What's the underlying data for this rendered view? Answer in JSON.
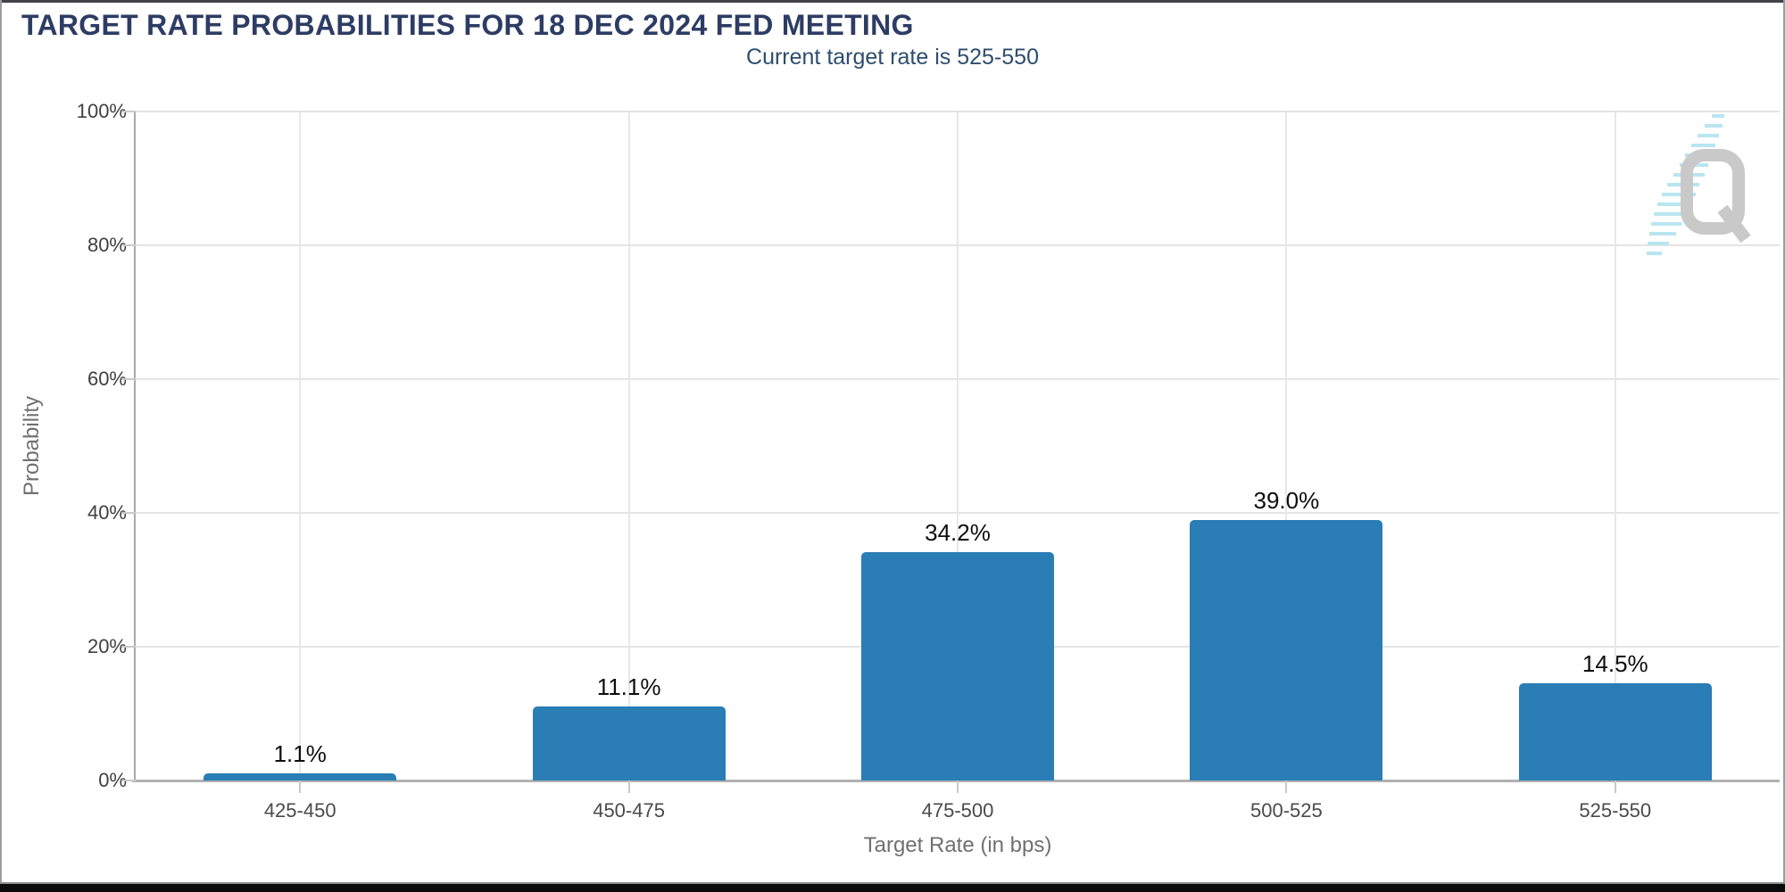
{
  "chart_data": {
    "type": "bar",
    "title": "TARGET RATE PROBABILITIES FOR 18 DEC 2024 FED MEETING",
    "subtitle": "Current target rate is 525-550",
    "categories": [
      "425-450",
      "450-475",
      "475-500",
      "500-525",
      "525-550"
    ],
    "values": [
      1.1,
      11.1,
      34.2,
      39.0,
      14.5
    ],
    "value_labels": [
      "1.1%",
      "11.1%",
      "34.2%",
      "39.0%",
      "14.5%"
    ],
    "xlabel": "Target Rate (in bps)",
    "ylabel": "Probability",
    "ylim": [
      0,
      100
    ],
    "yticks": [
      0,
      20,
      40,
      60,
      80,
      100
    ],
    "ytick_labels": [
      "0%",
      "20%",
      "40%",
      "60%",
      "80%",
      "100%"
    ],
    "grid": true,
    "legend": "none",
    "bar_color": "#2a7db5"
  },
  "watermark": {
    "glyph": "Q",
    "q_color": "#c9c9c9",
    "dash_color": "#b9e5f1"
  },
  "colors": {
    "title": "#2d3c64",
    "subtitle": "#2e4d6f",
    "axis": "#a9a9a9",
    "gridline": "#e4e4e4",
    "tick": "#c9c9c9",
    "value_label": "#0e0e0e",
    "frame_top": "#42424a",
    "frame_bottom": "#0b0b0b"
  }
}
